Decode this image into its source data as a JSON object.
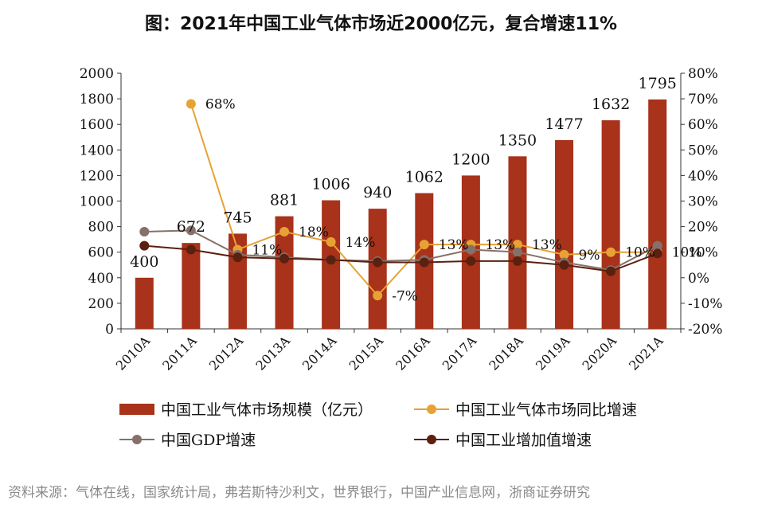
{
  "title": "图：2021年中国工业气体市场近2000亿元，复合增速11%",
  "source": "资料来源：气体在线，国家统计局，弗若斯特沙利文，世界银行，中国产业信息网，浙商证券研究",
  "colors": {
    "bar": "#a8321a",
    "market_growth": "#e7a233",
    "gdp": "#85716a",
    "industrial": "#5a2010",
    "axis": "#333333"
  },
  "chart_data": {
    "type": "bar",
    "categories": [
      "2010A",
      "2011A",
      "2012A",
      "2013A",
      "2014A",
      "2015A",
      "2016A",
      "2017A",
      "2018A",
      "2019A",
      "2020A",
      "2021A"
    ],
    "y_left": {
      "min": 0,
      "max": 2000,
      "step": 200,
      "ticks": [
        "0",
        "200",
        "400",
        "600",
        "800",
        "1000",
        "1200",
        "1400",
        "1600",
        "1800",
        "2000"
      ]
    },
    "y_right": {
      "min": -20,
      "max": 80,
      "step": 10,
      "ticks": [
        "-20%",
        "-10%",
        "0%",
        "10%",
        "20%",
        "30%",
        "40%",
        "50%",
        "60%",
        "70%",
        "80%"
      ]
    },
    "bars": {
      "name": "中国工业气体市场规模（亿元）",
      "values": [
        400,
        672,
        745,
        881,
        1006,
        940,
        1062,
        1200,
        1350,
        1477,
        1632,
        1795
      ],
      "labels": [
        "400",
        "672",
        "745",
        "881",
        "1006",
        "940",
        "1062",
        "1200",
        "1350",
        "1477",
        "1632",
        "1795"
      ]
    },
    "lines": [
      {
        "key": "market_growth",
        "name": "中国工业气体市场同比增速",
        "values": [
          null,
          68,
          11,
          18,
          14,
          -7,
          13,
          13,
          13,
          9,
          10,
          10
        ],
        "labels": [
          null,
          "68%",
          "11%",
          "18%",
          "14%",
          "-7%",
          "13%",
          "13%",
          "13%",
          "9%",
          "10%",
          "10%"
        ]
      },
      {
        "key": "gdp",
        "name": "中国GDP增速",
        "values": [
          18,
          18.5,
          9,
          8,
          7,
          6.5,
          7,
          11,
          10,
          6,
          3,
          12.5
        ],
        "labels": []
      },
      {
        "key": "industrial",
        "name": "中国工业增加值增速",
        "values": [
          12.5,
          11,
          8,
          7.5,
          7,
          6,
          6,
          6.5,
          6.5,
          5,
          2.5,
          9.5
        ],
        "labels": []
      }
    ],
    "legend": [
      {
        "key": "bars",
        "label": "中国工业气体市场规模（亿元）"
      },
      {
        "key": "market_growth",
        "label": "中国工业气体市场同比增速"
      },
      {
        "key": "gdp",
        "label": "中国GDP增速"
      },
      {
        "key": "industrial",
        "label": "中国工业增加值增速"
      }
    ],
    "legend_position": "bottom",
    "grid": false
  }
}
